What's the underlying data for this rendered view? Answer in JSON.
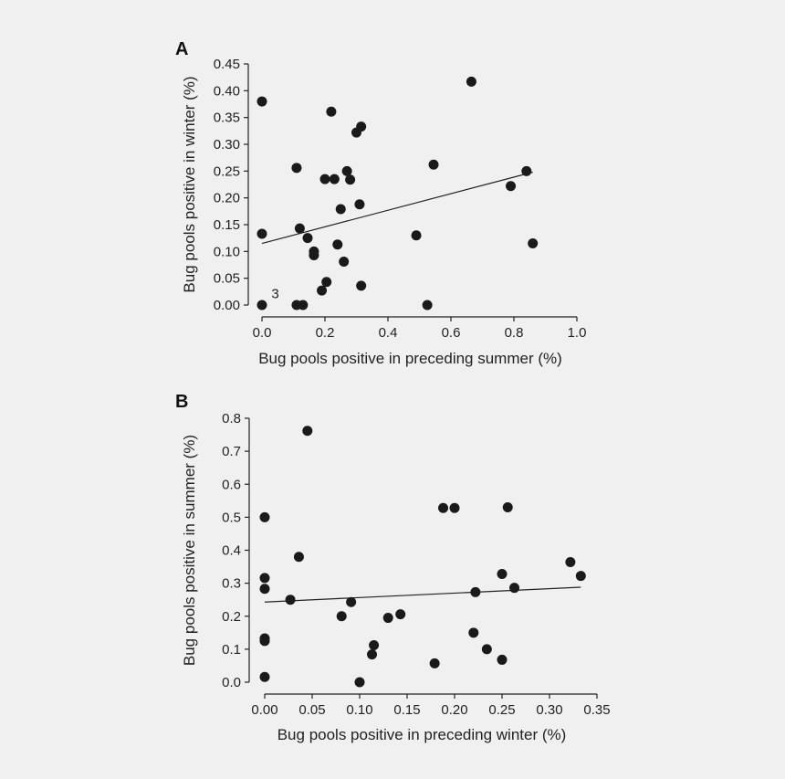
{
  "chart_data": [
    {
      "type": "scatter",
      "panel_label": "A",
      "xlabel": "Bug pools positive in preceding summer (%)",
      "ylabel": "Bug pools positive in winter (%)",
      "xlim": [
        0,
        1.0
      ],
      "ylim": [
        0,
        0.45
      ],
      "x_ticks": [
        "0.0",
        "0.2",
        "0.4",
        "0.6",
        "0.8",
        "1.0"
      ],
      "x_tick_values": [
        0,
        0.2,
        0.4,
        0.6,
        0.8,
        1.0
      ],
      "y_ticks": [
        "0.00",
        "0.05",
        "0.10",
        "0.15",
        "0.20",
        "0.25",
        "0.30",
        "0.35",
        "0.40",
        "0.45"
      ],
      "y_tick_values": [
        0,
        0.05,
        0.1,
        0.15,
        0.2,
        0.25,
        0.3,
        0.35,
        0.4,
        0.45
      ],
      "grid": false,
      "points": [
        {
          "x": 0.0,
          "y": 0.38
        },
        {
          "x": 0.0,
          "y": 0.133
        },
        {
          "x": 0.0,
          "y": 0.0
        },
        {
          "x": 0.11,
          "y": 0.256
        },
        {
          "x": 0.11,
          "y": 0.0
        },
        {
          "x": 0.13,
          "y": 0.0
        },
        {
          "x": 0.12,
          "y": 0.143
        },
        {
          "x": 0.145,
          "y": 0.125
        },
        {
          "x": 0.165,
          "y": 0.1
        },
        {
          "x": 0.165,
          "y": 0.093
        },
        {
          "x": 0.19,
          "y": 0.027
        },
        {
          "x": 0.2,
          "y": 0.235
        },
        {
          "x": 0.205,
          "y": 0.043
        },
        {
          "x": 0.22,
          "y": 0.361
        },
        {
          "x": 0.23,
          "y": 0.235
        },
        {
          "x": 0.24,
          "y": 0.113
        },
        {
          "x": 0.25,
          "y": 0.179
        },
        {
          "x": 0.26,
          "y": 0.081
        },
        {
          "x": 0.27,
          "y": 0.25
        },
        {
          "x": 0.28,
          "y": 0.234
        },
        {
          "x": 0.3,
          "y": 0.322
        },
        {
          "x": 0.31,
          "y": 0.188
        },
        {
          "x": 0.315,
          "y": 0.333
        },
        {
          "x": 0.315,
          "y": 0.036
        },
        {
          "x": 0.49,
          "y": 0.13
        },
        {
          "x": 0.525,
          "y": 0.0
        },
        {
          "x": 0.545,
          "y": 0.262
        },
        {
          "x": 0.665,
          "y": 0.417
        },
        {
          "x": 0.79,
          "y": 0.222
        },
        {
          "x": 0.84,
          "y": 0.25
        },
        {
          "x": 0.86,
          "y": 0.115
        }
      ],
      "fit_line": {
        "x": [
          0.0,
          0.86
        ],
        "y": [
          0.115,
          0.248
        ]
      },
      "annotations": [
        {
          "text": "3",
          "x": 0.03,
          "y": 0.013
        }
      ]
    },
    {
      "type": "scatter",
      "panel_label": "B",
      "xlabel": "Bug pools positive in preceding winter (%)",
      "ylabel": "Bug pools positive in summer (%)",
      "xlim": [
        0,
        0.35
      ],
      "ylim": [
        0,
        0.8
      ],
      "x_ticks": [
        "0.00",
        "0.05",
        "0.10",
        "0.15",
        "0.20",
        "0.25",
        "0.30",
        "0.35"
      ],
      "x_tick_values": [
        0,
        0.05,
        0.1,
        0.15,
        0.2,
        0.25,
        0.3,
        0.35
      ],
      "y_ticks": [
        "0.0",
        "0.1",
        "0.2",
        "0.3",
        "0.4",
        "0.5",
        "0.6",
        "0.7",
        "0.8"
      ],
      "y_tick_values": [
        0,
        0.1,
        0.2,
        0.3,
        0.4,
        0.5,
        0.6,
        0.7,
        0.8
      ],
      "grid": false,
      "points": [
        {
          "x": 0.0,
          "y": 0.5
        },
        {
          "x": 0.0,
          "y": 0.316
        },
        {
          "x": 0.0,
          "y": 0.283
        },
        {
          "x": 0.0,
          "y": 0.133
        },
        {
          "x": 0.0,
          "y": 0.125
        },
        {
          "x": 0.0,
          "y": 0.016
        },
        {
          "x": 0.027,
          "y": 0.25
        },
        {
          "x": 0.036,
          "y": 0.38
        },
        {
          "x": 0.045,
          "y": 0.762
        },
        {
          "x": 0.081,
          "y": 0.2
        },
        {
          "x": 0.091,
          "y": 0.243
        },
        {
          "x": 0.1,
          "y": 0.0
        },
        {
          "x": 0.113,
          "y": 0.084
        },
        {
          "x": 0.115,
          "y": 0.112
        },
        {
          "x": 0.13,
          "y": 0.195
        },
        {
          "x": 0.143,
          "y": 0.206
        },
        {
          "x": 0.179,
          "y": 0.057
        },
        {
          "x": 0.188,
          "y": 0.528
        },
        {
          "x": 0.2,
          "y": 0.528
        },
        {
          "x": 0.22,
          "y": 0.15
        },
        {
          "x": 0.222,
          "y": 0.273
        },
        {
          "x": 0.234,
          "y": 0.1
        },
        {
          "x": 0.25,
          "y": 0.068
        },
        {
          "x": 0.25,
          "y": 0.328
        },
        {
          "x": 0.256,
          "y": 0.53
        },
        {
          "x": 0.263,
          "y": 0.286
        },
        {
          "x": 0.322,
          "y": 0.364
        },
        {
          "x": 0.333,
          "y": 0.322
        }
      ],
      "fit_line": {
        "x": [
          0.0,
          0.333
        ],
        "y": [
          0.243,
          0.288
        ]
      }
    }
  ]
}
